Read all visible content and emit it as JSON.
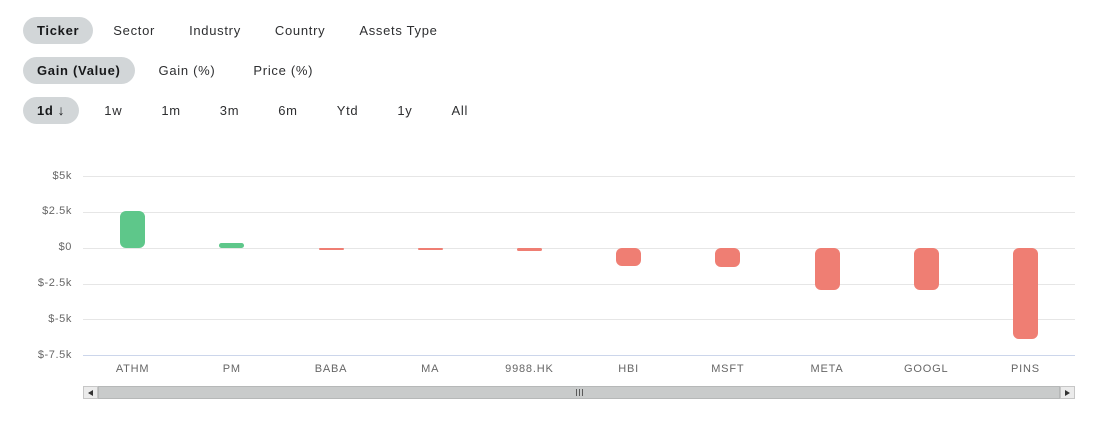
{
  "filters": {
    "rows": [
      {
        "name": "group-by",
        "items": [
          {
            "label": "Ticker",
            "selected": true
          },
          {
            "label": "Sector",
            "selected": false
          },
          {
            "label": "Industry",
            "selected": false
          },
          {
            "label": "Country",
            "selected": false
          },
          {
            "label": "Assets Type",
            "selected": false
          }
        ]
      },
      {
        "name": "metric",
        "items": [
          {
            "label": "Gain (Value)",
            "selected": true
          },
          {
            "label": "Gain (%)",
            "selected": false
          },
          {
            "label": "Price (%)",
            "selected": false
          }
        ]
      },
      {
        "name": "period",
        "items": [
          {
            "label": "1d",
            "selected": true,
            "icon": "arrow-down-icon",
            "icon_glyph": "↓"
          },
          {
            "label": "1w",
            "selected": false
          },
          {
            "label": "1m",
            "selected": false
          },
          {
            "label": "3m",
            "selected": false
          },
          {
            "label": "6m",
            "selected": false
          },
          {
            "label": "Ytd",
            "selected": false
          },
          {
            "label": "1y",
            "selected": false
          },
          {
            "label": "All",
            "selected": false
          }
        ]
      }
    ],
    "selected_pill_color": "#d2d6d8"
  },
  "chart_data": {
    "type": "bar",
    "title": "",
    "xlabel": "",
    "ylabel": "",
    "categories": [
      "ATHM",
      "PM",
      "BABA",
      "MA",
      "9988.HK",
      "HBI",
      "MSFT",
      "META",
      "GOOGL",
      "PINS"
    ],
    "values": [
      2560,
      330,
      -70,
      -130,
      -200,
      -1230,
      -1330,
      -2890,
      -2950,
      -6320
    ],
    "value_unit": "USD",
    "series_name": "Gain (Value) 1d",
    "ylim": [
      -7500,
      5900
    ],
    "yticks": [
      {
        "value": 5000,
        "label": "$5k",
        "axis_line": false
      },
      {
        "value": 2500,
        "label": "$2.5k",
        "axis_line": false
      },
      {
        "value": 0,
        "label": "$0",
        "axis_line": false
      },
      {
        "value": -2500,
        "label": "$-2.5k",
        "axis_line": false
      },
      {
        "value": -5000,
        "label": "$-5k",
        "axis_line": false
      },
      {
        "value": -7500,
        "label": "$-7.5k",
        "axis_line": true
      }
    ],
    "grid": true,
    "legend_position": "none",
    "positive_color": "#5ec78a",
    "negative_color": "#ef7e73",
    "grid_color": "#e6e6e6",
    "axis_line_color": "#ccd6eb",
    "label_color": "#666666"
  },
  "scrollbar": {
    "left_button_icon": "triangle-left-icon",
    "right_button_icon": "triangle-right-icon",
    "thumb_grip_icon": "grip-lines-icon"
  }
}
